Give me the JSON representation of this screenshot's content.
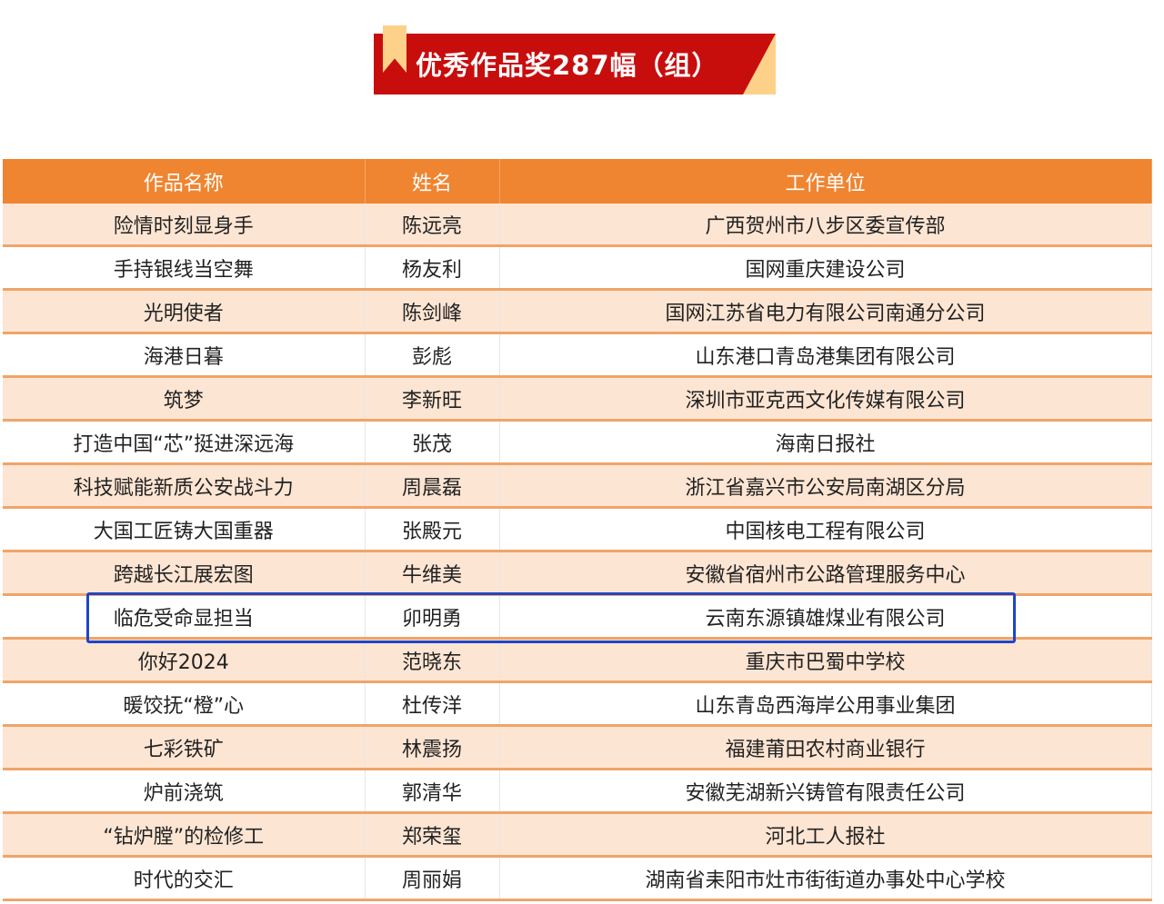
{
  "banner": {
    "title": "优秀作品奖287幅（组）"
  },
  "table": {
    "headers": [
      "作品名称",
      "姓名",
      "工作单位"
    ],
    "rows": [
      [
        "险情时刻显身手",
        "陈远亮",
        "广西贺州市八步区委宣传部"
      ],
      [
        "手持银线当空舞",
        "杨友利",
        "国网重庆建设公司"
      ],
      [
        "光明使者",
        "陈剑峰",
        "国网江苏省电力有限公司南通分公司"
      ],
      [
        "海港日暮",
        "彭彪",
        "山东港口青岛港集团有限公司"
      ],
      [
        "筑梦",
        "李新旺",
        "深圳市亚克西文化传媒有限公司"
      ],
      [
        "打造中国“芯”挺进深远海",
        "张茂",
        "海南日报社"
      ],
      [
        "科技赋能新质公安战斗力",
        "周晨磊",
        "浙江省嘉兴市公安局南湖区分局"
      ],
      [
        "大国工匠铸大国重器",
        "张殿元",
        "中国核电工程有限公司"
      ],
      [
        "跨越长江展宏图",
        "牛维美",
        "安徽省宿州市公路管理服务中心"
      ],
      [
        "临危受命显担当",
        "卯明勇",
        "云南东源镇雄煤业有限公司"
      ],
      [
        "你好2024",
        "范晓东",
        "重庆市巴蜀中学校"
      ],
      [
        "暖饺抚“橙”心",
        "杜传洋",
        "山东青岛西海岸公用事业集团"
      ],
      [
        "七彩铁矿",
        "林震扬",
        "福建莆田农村商业银行"
      ],
      [
        "炉前浇筑",
        "郭清华",
        "安徽芜湖新兴铸管有限责任公司"
      ],
      [
        "“钻炉膛”的检修工",
        "郑荣玺",
        "河北工人报社"
      ],
      [
        "时代的交汇",
        "周丽娟",
        "湖南省耒阳市灶市街街道办事处中心学校"
      ]
    ],
    "highlighted_row": 9,
    "colors": {
      "header": "#ef8530",
      "odd_row": "#fde5d3",
      "highlight": "#1f45c9",
      "banner": "#c80d0d"
    }
  }
}
